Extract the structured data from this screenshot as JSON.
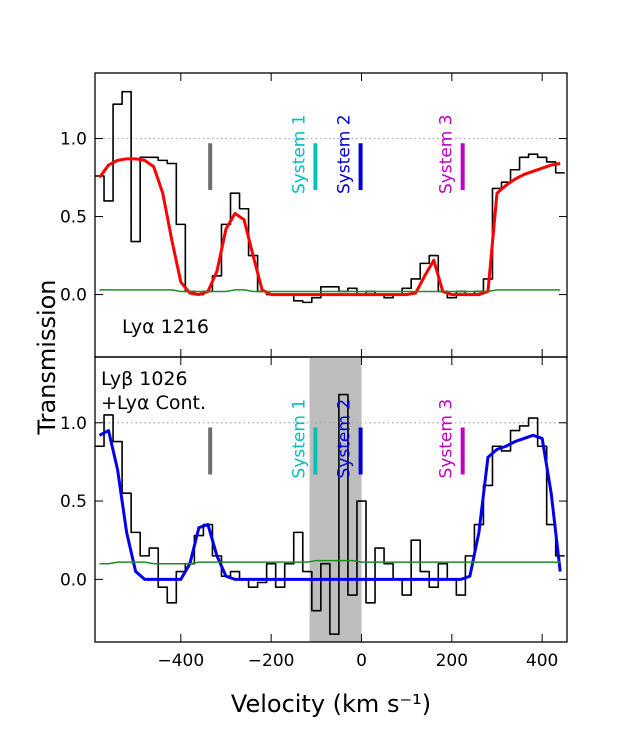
{
  "ylabel": "Transmission",
  "chart_data": [
    {
      "type": "line",
      "annotation": [
        "Lyα 1216"
      ],
      "xlim": [
        -590,
        455
      ],
      "ylim": [
        -0.4,
        1.42
      ],
      "xticks": [
        {
          "value": -400,
          "label": "−400"
        },
        {
          "value": -200,
          "label": "−200"
        },
        {
          "value": 0,
          "label": "0"
        },
        {
          "value": 200,
          "label": "200"
        },
        {
          "value": 400,
          "label": "400"
        }
      ],
      "yticks": [
        {
          "value": 0,
          "label": "0.0"
        },
        {
          "value": 0.5,
          "label": "0.5"
        },
        {
          "value": 1,
          "label": "1.0"
        }
      ],
      "reference_line": 1,
      "x": [
        -580,
        -560,
        -540,
        -520,
        -500,
        -480,
        -460,
        -440,
        -420,
        -400,
        -380,
        -360,
        -340,
        -320,
        -300,
        -280,
        -260,
        -240,
        -220,
        -200,
        -180,
        -160,
        -140,
        -120,
        -100,
        -80,
        -60,
        -40,
        -20,
        0,
        20,
        40,
        60,
        80,
        100,
        120,
        140,
        160,
        180,
        200,
        220,
        240,
        260,
        280,
        300,
        320,
        340,
        360,
        380,
        400,
        420,
        440
      ],
      "series": [
        {
          "style": "step",
          "color": "#000000",
          "values": [
            0.76,
            0.6,
            1.22,
            1.3,
            0.34,
            0.88,
            0.88,
            0.86,
            0.84,
            0.45,
            0.02,
            0.0,
            0.02,
            0.12,
            0.45,
            0.65,
            0.55,
            0.25,
            0.02,
            0.0,
            0.0,
            0.0,
            -0.04,
            -0.05,
            -0.02,
            0.05,
            0.05,
            0.02,
            0.04,
            0.0,
            0.02,
            0.0,
            -0.02,
            0.0,
            0.04,
            0.1,
            0.2,
            0.25,
            0.02,
            -0.02,
            0.02,
            0.0,
            0.02,
            0.1,
            0.68,
            0.72,
            0.8,
            0.88,
            0.9,
            0.88,
            0.85,
            0.78
          ]
        },
        {
          "style": "smooth",
          "color": "#ff0000",
          "width": 3,
          "values": [
            0.75,
            0.83,
            0.86,
            0.87,
            0.87,
            0.86,
            0.82,
            0.65,
            0.35,
            0.08,
            0.01,
            0.0,
            0.02,
            0.15,
            0.42,
            0.52,
            0.48,
            0.25,
            0.03,
            0.0,
            0.0,
            0.0,
            0.0,
            0.0,
            0.0,
            0.0,
            0.0,
            0.0,
            0.0,
            0.0,
            0.0,
            0.0,
            0.0,
            0.0,
            0.0,
            0.01,
            0.12,
            0.22,
            0.02,
            0.0,
            0.0,
            0.0,
            0.0,
            0.02,
            0.65,
            0.7,
            0.74,
            0.77,
            0.79,
            0.81,
            0.83,
            0.84
          ]
        },
        {
          "style": "smooth",
          "color": "#228b22",
          "width": 1.5,
          "values": [
            0.03,
            0.03,
            0.03,
            0.03,
            0.03,
            0.03,
            0.03,
            0.03,
            0.03,
            0.02,
            0.02,
            0.02,
            0.02,
            0.02,
            0.02,
            0.03,
            0.03,
            0.02,
            0.02,
            0.02,
            0.02,
            0.02,
            0.02,
            0.02,
            0.02,
            0.02,
            0.02,
            0.02,
            0.02,
            0.02,
            0.02,
            0.02,
            0.02,
            0.02,
            0.02,
            0.02,
            0.02,
            0.02,
            0.02,
            0.02,
            0.02,
            0.02,
            0.02,
            0.02,
            0.03,
            0.03,
            0.03,
            0.03,
            0.03,
            0.03,
            0.03,
            0.03
          ]
        }
      ],
      "markers": [
        {
          "x": -335,
          "ymin": 0.67,
          "ymax": 0.97,
          "color": "#6e6e6e"
        },
        {
          "x": -102,
          "ymin": 0.67,
          "ymax": 0.97,
          "color": "#00bfbf",
          "label": "System 1"
        },
        {
          "x": -2,
          "ymin": 0.67,
          "ymax": 0.97,
          "color": "#0000dd",
          "label": "System 2"
        },
        {
          "x": 224,
          "ymin": 0.67,
          "ymax": 0.97,
          "color": "#bf00bf",
          "label": "System 3"
        }
      ]
    },
    {
      "type": "line",
      "annotation": [
        "Lyβ 1026",
        "+Lyα Cont."
      ],
      "xlabel": "Velocity (km s⁻¹)",
      "xlim": [
        -590,
        455
      ],
      "ylim": [
        -0.4,
        1.42
      ],
      "xticks": [
        {
          "value": -400,
          "label": "−400"
        },
        {
          "value": -200,
          "label": "−200"
        },
        {
          "value": 0,
          "label": "0"
        },
        {
          "value": 200,
          "label": "200"
        },
        {
          "value": 400,
          "label": "400"
        }
      ],
      "yticks": [
        {
          "value": 0,
          "label": "0.0"
        },
        {
          "value": 0.5,
          "label": "0.5"
        },
        {
          "value": 1,
          "label": "1.0"
        }
      ],
      "reference_line": 1,
      "shade": [
        -115,
        0
      ],
      "x": [
        -580,
        -560,
        -540,
        -520,
        -500,
        -480,
        -460,
        -440,
        -420,
        -400,
        -380,
        -360,
        -340,
        -320,
        -300,
        -280,
        -260,
        -240,
        -220,
        -200,
        -180,
        -160,
        -140,
        -120,
        -100,
        -80,
        -60,
        -40,
        -20,
        0,
        20,
        40,
        60,
        80,
        100,
        120,
        140,
        160,
        180,
        200,
        220,
        240,
        260,
        280,
        300,
        320,
        340,
        360,
        380,
        400,
        420,
        440
      ],
      "series": [
        {
          "style": "step",
          "color": "#000000",
          "values": [
            0.85,
            1.05,
            0.88,
            0.55,
            0.3,
            0.15,
            0.2,
            -0.05,
            -0.15,
            0.05,
            0.1,
            0.28,
            0.35,
            0.15,
            0.02,
            0.05,
            0.0,
            -0.05,
            -0.02,
            0.1,
            -0.05,
            0.1,
            0.3,
            0.05,
            -0.2,
            0.1,
            -0.35,
            1.18,
            -0.1,
            0.5,
            -0.15,
            0.2,
            0.1,
            0.0,
            -0.1,
            0.25,
            0.05,
            -0.05,
            0.1,
            0.0,
            -0.1,
            0.15,
            0.35,
            0.6,
            0.85,
            0.82,
            0.95,
            0.98,
            1.03,
            0.85,
            0.35,
            0.15
          ]
        },
        {
          "style": "smooth",
          "color": "#0000ee",
          "width": 3,
          "values": [
            0.92,
            0.95,
            0.7,
            0.3,
            0.05,
            0.0,
            0.0,
            0.0,
            0.0,
            0.0,
            0.1,
            0.33,
            0.35,
            0.15,
            0.02,
            0.0,
            0.0,
            0.0,
            0.0,
            0.0,
            0.0,
            0.0,
            0.0,
            0.0,
            0.0,
            0.0,
            0.0,
            0.0,
            0.0,
            0.0,
            0.0,
            0.0,
            0.0,
            0.0,
            0.0,
            0.0,
            0.0,
            0.0,
            0.0,
            0.0,
            0.0,
            0.02,
            0.3,
            0.78,
            0.83,
            0.85,
            0.88,
            0.9,
            0.92,
            0.9,
            0.55,
            0.05
          ]
        },
        {
          "style": "smooth",
          "color": "#228b22",
          "width": 1.5,
          "values": [
            0.1,
            0.1,
            0.11,
            0.11,
            0.11,
            0.11,
            0.1,
            0.1,
            0.1,
            0.1,
            0.1,
            0.11,
            0.11,
            0.11,
            0.11,
            0.11,
            0.11,
            0.11,
            0.11,
            0.11,
            0.11,
            0.11,
            0.11,
            0.11,
            0.12,
            0.12,
            0.12,
            0.12,
            0.12,
            0.11,
            0.11,
            0.11,
            0.11,
            0.11,
            0.11,
            0.11,
            0.11,
            0.11,
            0.11,
            0.11,
            0.11,
            0.11,
            0.11,
            0.11,
            0.11,
            0.11,
            0.11,
            0.11,
            0.11,
            0.11,
            0.11,
            0.11
          ]
        }
      ],
      "markers": [
        {
          "x": -335,
          "ymin": 0.67,
          "ymax": 0.97,
          "color": "#6e6e6e"
        },
        {
          "x": -102,
          "ymin": 0.67,
          "ymax": 0.97,
          "color": "#00bfbf",
          "label": "System 1"
        },
        {
          "x": -2,
          "ymin": 0.67,
          "ymax": 0.97,
          "color": "#0000dd",
          "label": "System 2"
        },
        {
          "x": 224,
          "ymin": 0.67,
          "ymax": 0.97,
          "color": "#bf00bf",
          "label": "System 3"
        }
      ]
    }
  ]
}
